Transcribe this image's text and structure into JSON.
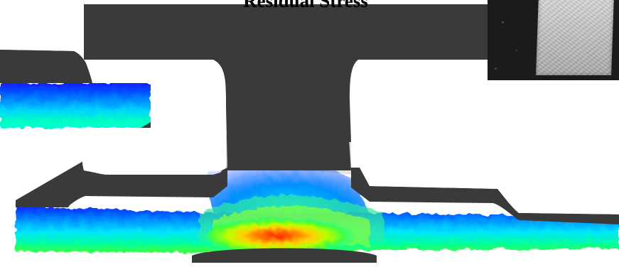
{
  "figure": {
    "title": "Residual Stress"
  },
  "colors": {
    "structure": "#3a3a3a",
    "background": "#ffffff",
    "stress_scale": [
      "#0000ff",
      "#0066ff",
      "#00c8ff",
      "#00ffb0",
      "#30ff30",
      "#d8ff00",
      "#ffa000",
      "#ff3000"
    ]
  },
  "photo": {
    "description_icon": "fabric-photo"
  }
}
